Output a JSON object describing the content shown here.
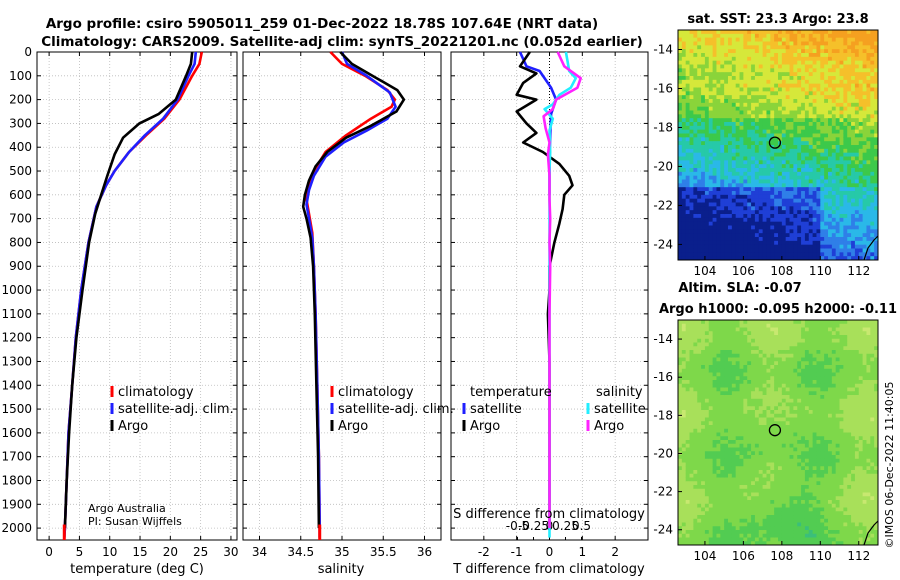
{
  "title_line1": "Argo profile: csiro 5905011_259 01-Dec-2022 18.78S 107.64E (NRT data)",
  "title_line2": "Climatology: CARS2009. Satellite-adj clim: synTS_20221201.nc (0.052d earlier)",
  "credit": {
    "line1": "Argo Australia",
    "line2": "PI: Susan Wijffels"
  },
  "timestamp": "©IMOS 06-Dec-2022 11:40:05",
  "colors": {
    "climatology": "#ff0000",
    "satellite_adj": "#1f1fff",
    "argo": "#000000",
    "argo_sal": "#ff22ff",
    "sat_sal": "#22eeff"
  },
  "chart_data": [
    {
      "type": "line",
      "id": "temperature",
      "xlabel": "temperature (deg C)",
      "ylabel": "",
      "xlim": [
        -2,
        31
      ],
      "ylim": [
        2050,
        0
      ],
      "xticks": [
        0,
        5,
        10,
        15,
        20,
        25,
        30
      ],
      "yticks": [
        0,
        100,
        200,
        300,
        400,
        500,
        600,
        700,
        800,
        900,
        1000,
        1100,
        1200,
        1300,
        1400,
        1500,
        1600,
        1700,
        1800,
        1900,
        2000
      ],
      "legend": [
        "climatology",
        "satellite-adj. clim.",
        "Argo"
      ],
      "series": [
        {
          "name": "climatology",
          "color": "#ff0000",
          "points": [
            [
              25.2,
              0
            ],
            [
              24.8,
              50
            ],
            [
              23.6,
              100
            ],
            [
              21.5,
              200
            ],
            [
              19.0,
              280
            ],
            [
              16.0,
              350
            ],
            [
              13.2,
              420
            ],
            [
              10.8,
              500
            ],
            [
              9.4,
              560
            ],
            [
              7.8,
              650
            ],
            [
              6.5,
              800
            ],
            [
              5.3,
              1000
            ],
            [
              4.4,
              1200
            ],
            [
              3.8,
              1400
            ],
            [
              3.2,
              1600
            ],
            [
              2.9,
              1800
            ],
            [
              2.6,
              2000
            ],
            [
              2.5,
              2040
            ]
          ]
        },
        {
          "name": "satellite-adj. clim.",
          "color": "#1f1fff",
          "points": [
            [
              24.2,
              0
            ],
            [
              24.0,
              50
            ],
            [
              23.0,
              100
            ],
            [
              21.2,
              200
            ],
            [
              18.8,
              280
            ],
            [
              15.8,
              350
            ],
            [
              13.2,
              420
            ],
            [
              10.8,
              500
            ],
            [
              9.4,
              560
            ],
            [
              7.8,
              650
            ],
            [
              6.5,
              800
            ],
            [
              5.3,
              1000
            ],
            [
              4.4,
              1200
            ],
            [
              3.8,
              1400
            ],
            [
              3.2,
              1600
            ],
            [
              2.9,
              1800
            ],
            [
              2.6,
              2000
            ],
            [
              2.5,
              2040
            ]
          ]
        },
        {
          "name": "Argo",
          "color": "#000000",
          "points": [
            [
              23.6,
              0
            ],
            [
              23.4,
              50
            ],
            [
              22.6,
              100
            ],
            [
              20.9,
              200
            ],
            [
              18.1,
              260
            ],
            [
              14.9,
              300
            ],
            [
              12.2,
              360
            ],
            [
              10.8,
              430
            ],
            [
              9.6,
              520
            ],
            [
              8.6,
              600
            ],
            [
              7.6,
              680
            ],
            [
              6.6,
              800
            ],
            [
              5.5,
              1000
            ],
            [
              4.5,
              1200
            ],
            [
              3.8,
              1400
            ],
            [
              3.3,
              1600
            ],
            [
              2.9,
              1800
            ],
            [
              2.6,
              2000
            ]
          ]
        }
      ]
    },
    {
      "type": "line",
      "id": "salinity",
      "xlabel": "salinity",
      "ylabel": "",
      "xlim": [
        33.8,
        36.2
      ],
      "ylim": [
        2050,
        0
      ],
      "xticks": [
        34,
        34.5,
        35,
        35.5,
        36
      ],
      "legend": [
        "climatology",
        "satellite-adj. clim.",
        "Argo"
      ],
      "series": [
        {
          "name": "climatology",
          "color": "#ff0000",
          "points": [
            [
              34.86,
              0
            ],
            [
              35.0,
              50
            ],
            [
              35.28,
              100
            ],
            [
              35.55,
              160
            ],
            [
              35.64,
              200
            ],
            [
              35.6,
              230
            ],
            [
              35.35,
              280
            ],
            [
              35.05,
              350
            ],
            [
              34.8,
              420
            ],
            [
              34.66,
              500
            ],
            [
              34.6,
              560
            ],
            [
              34.57,
              620
            ],
            [
              34.6,
              680
            ],
            [
              34.64,
              760
            ],
            [
              34.66,
              900
            ],
            [
              34.68,
              1100
            ],
            [
              34.7,
              1400
            ],
            [
              34.72,
              1700
            ],
            [
              34.73,
              2000
            ],
            [
              34.73,
              2040
            ]
          ]
        },
        {
          "name": "satellite-adj. clim.",
          "color": "#1f1fff",
          "points": [
            [
              35.0,
              0
            ],
            [
              35.06,
              50
            ],
            [
              35.3,
              100
            ],
            [
              35.58,
              170
            ],
            [
              35.65,
              230
            ],
            [
              35.55,
              280
            ],
            [
              35.3,
              330
            ],
            [
              35.02,
              380
            ],
            [
              34.8,
              440
            ],
            [
              34.66,
              520
            ],
            [
              34.6,
              580
            ],
            [
              34.57,
              640
            ],
            [
              34.6,
              700
            ],
            [
              34.64,
              780
            ],
            [
              34.66,
              900
            ],
            [
              34.68,
              1100
            ],
            [
              34.7,
              1400
            ],
            [
              34.72,
              1700
            ],
            [
              34.73,
              2000
            ],
            [
              34.73,
              2040
            ]
          ]
        },
        {
          "name": "Argo",
          "color": "#000000",
          "points": [
            [
              34.98,
              0
            ],
            [
              35.12,
              50
            ],
            [
              35.42,
              110
            ],
            [
              35.67,
              160
            ],
            [
              35.75,
              200
            ],
            [
              35.66,
              250
            ],
            [
              35.35,
              310
            ],
            [
              35.05,
              360
            ],
            [
              34.82,
              420
            ],
            [
              34.68,
              480
            ],
            [
              34.6,
              540
            ],
            [
              34.55,
              600
            ],
            [
              34.53,
              650
            ],
            [
              34.57,
              700
            ],
            [
              34.62,
              780
            ],
            [
              34.65,
              900
            ],
            [
              34.67,
              1100
            ],
            [
              34.69,
              1400
            ],
            [
              34.71,
              1700
            ],
            [
              34.72,
              2000
            ]
          ]
        }
      ]
    },
    {
      "type": "line",
      "id": "difference",
      "xlabel": "T difference from climatology",
      "xlabel2": "S difference from climatology",
      "xlim": [
        -3,
        3
      ],
      "ylim": [
        2050,
        0
      ],
      "xticks": [
        -2,
        -1,
        0,
        1,
        2
      ],
      "xtick_labels": [
        "-2",
        "-1",
        "0",
        "1",
        "2"
      ],
      "xticks2": [
        -0.5,
        -0.25,
        0,
        0.25,
        0.5
      ],
      "xtick2_labels": [
        "-0.5",
        "-0.25",
        "0",
        "0.25",
        "0.5"
      ],
      "legend_headers": [
        "temperature",
        "salinity"
      ],
      "legend": [
        "satellite",
        "Argo",
        "satellite",
        "Argo"
      ],
      "series": [
        {
          "name": "temperature satellite",
          "color": "#1f1fff",
          "points": [
            [
              -0.9,
              0
            ],
            [
              -0.7,
              60
            ],
            [
              -0.3,
              80
            ],
            [
              0.05,
              150
            ],
            [
              0.2,
              200
            ],
            [
              0.05,
              260
            ],
            [
              0.02,
              350
            ],
            [
              0.0,
              450
            ],
            [
              0.0,
              600
            ]
          ]
        },
        {
          "name": "temperature Argo",
          "color": "#000000",
          "points": [
            [
              -0.6,
              0
            ],
            [
              -0.9,
              60
            ],
            [
              -0.4,
              90
            ],
            [
              -0.8,
              130
            ],
            [
              -1.0,
              180
            ],
            [
              -0.4,
              200
            ],
            [
              -1.0,
              250
            ],
            [
              -0.7,
              300
            ],
            [
              -0.4,
              340
            ],
            [
              -0.8,
              380
            ],
            [
              -0.2,
              420
            ],
            [
              0.3,
              470
            ],
            [
              0.6,
              520
            ],
            [
              0.7,
              560
            ],
            [
              0.45,
              600
            ],
            [
              0.4,
              660
            ],
            [
              0.3,
              720
            ],
            [
              0.15,
              800
            ],
            [
              0.0,
              900
            ],
            [
              0.0,
              1000
            ],
            [
              -0.05,
              1100
            ],
            [
              0.0,
              1300
            ],
            [
              0.0,
              2000
            ]
          ]
        },
        {
          "name": "salinity satellite",
          "color": "#22eeff",
          "points": [
            [
              0.5,
              0
            ],
            [
              0.55,
              40
            ],
            [
              0.6,
              80
            ],
            [
              0.8,
              110
            ],
            [
              0.65,
              150
            ],
            [
              0.3,
              180
            ],
            [
              0.1,
              220
            ],
            [
              -0.15,
              240
            ],
            [
              0.1,
              280
            ],
            [
              0.0,
              330
            ],
            [
              0.02,
              420
            ],
            [
              0.0,
              500
            ],
            [
              0.0,
              560
            ],
            [
              0.0,
              700
            ],
            [
              0.0,
              900
            ],
            [
              0.0,
              1200
            ],
            [
              0.0,
              1500
            ],
            [
              0.0,
              1800
            ],
            [
              0.0,
              2040
            ]
          ]
        },
        {
          "name": "salinity Argo",
          "color": "#ff22ff",
          "points": [
            [
              0.25,
              0
            ],
            [
              0.45,
              60
            ],
            [
              0.95,
              110
            ],
            [
              0.85,
              150
            ],
            [
              0.2,
              200
            ],
            [
              0.1,
              240
            ],
            [
              -0.18,
              270
            ],
            [
              -0.12,
              320
            ],
            [
              0.0,
              380
            ],
            [
              -0.05,
              430
            ],
            [
              0.0,
              520
            ],
            [
              0.0,
              620
            ],
            [
              0.02,
              700
            ],
            [
              0.0,
              800
            ],
            [
              0.02,
              900
            ],
            [
              0.0,
              1100
            ],
            [
              0.0,
              1400
            ],
            [
              0.0,
              1700
            ],
            [
              0.0,
              2000
            ]
          ]
        }
      ]
    },
    {
      "type": "heatmap",
      "id": "sst_map",
      "title": "sat. SST: 23.3 Argo: 23.8",
      "xlim": [
        102.6,
        113.0
      ],
      "ylim": [
        -24.8,
        -13.0
      ],
      "xticks": [
        104,
        106,
        108,
        110,
        112
      ],
      "yticks": [
        -14,
        -16,
        -18,
        -20,
        -22,
        -24
      ],
      "marker": [
        107.64,
        -18.78
      ]
    },
    {
      "type": "heatmap",
      "id": "sla_map",
      "title": "Altim. SLA: -0.07",
      "subtitle": "Argo h1000: -0.095 h2000: -0.11",
      "xlim": [
        102.6,
        113.0
      ],
      "ylim": [
        -24.8,
        -13.0
      ],
      "xticks": [
        104,
        106,
        108,
        110,
        112
      ],
      "yticks": [
        -14,
        -16,
        -18,
        -20,
        -22,
        -24
      ],
      "marker": [
        107.64,
        -18.78
      ]
    }
  ]
}
